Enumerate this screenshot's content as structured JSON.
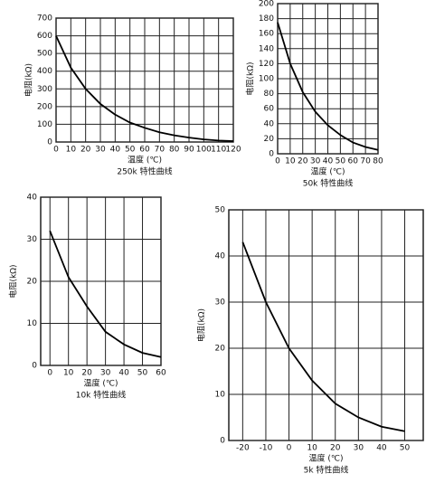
{
  "chart_data": [
    {
      "type": "line",
      "title": "250k 特性曲线",
      "x_label": "温度 (℃)",
      "y_label": "电阻(kΩ)",
      "x": [
        0,
        10,
        20,
        30,
        40,
        50,
        60,
        70,
        80,
        90,
        100,
        110,
        120
      ],
      "values": [
        600,
        420,
        300,
        215,
        155,
        110,
        80,
        55,
        38,
        25,
        15,
        8,
        5
      ],
      "xlim": [
        0,
        120
      ],
      "xticks": [
        0,
        10,
        20,
        30,
        40,
        50,
        60,
        70,
        80,
        90,
        100,
        110,
        120
      ],
      "ylim": [
        0,
        700
      ],
      "yticks": [
        0,
        100,
        200,
        300,
        400,
        500,
        600,
        700
      ],
      "grid": true,
      "color": "#000000"
    },
    {
      "type": "line",
      "title": "50k 特性曲线",
      "x_label": "温度 (℃)",
      "y_label": "电阻(kΩ)",
      "x": [
        0,
        10,
        20,
        30,
        40,
        50,
        60,
        70,
        80
      ],
      "values": [
        175,
        120,
        82,
        56,
        38,
        25,
        15,
        9,
        5
      ],
      "xlim": [
        0,
        80
      ],
      "xticks": [
        0,
        10,
        20,
        30,
        40,
        50,
        60,
        70,
        80
      ],
      "ylim": [
        0,
        200
      ],
      "yticks": [
        0,
        20,
        40,
        60,
        80,
        100,
        120,
        140,
        160,
        180,
        200
      ],
      "grid": true,
      "color": "#000000"
    },
    {
      "type": "line",
      "title": "10k 特性曲线",
      "x_label": "温度 (℃)",
      "y_label": "电阻(kΩ)",
      "x": [
        0,
        10,
        20,
        30,
        40,
        50,
        60
      ],
      "values": [
        32,
        21,
        14,
        8,
        5,
        3,
        2
      ],
      "xlim": [
        -5,
        60
      ],
      "xticks": [
        0,
        10,
        20,
        30,
        40,
        50,
        60
      ],
      "ylim": [
        0,
        40
      ],
      "yticks": [
        0,
        10,
        20,
        30,
        40
      ],
      "grid": true,
      "color": "#000000"
    },
    {
      "type": "line",
      "title": "5k 特性曲线",
      "x_label": "温度 (℃)",
      "y_label": "电阻(kΩ)",
      "x": [
        -20,
        -10,
        0,
        10,
        20,
        30,
        40,
        50
      ],
      "values": [
        43,
        30,
        20,
        13,
        8,
        5,
        3,
        2
      ],
      "xlim": [
        -26,
        58
      ],
      "xticks": [
        -20,
        -10,
        0,
        10,
        20,
        30,
        40,
        50
      ],
      "ylim": [
        0,
        50
      ],
      "yticks": [
        0,
        10,
        20,
        30,
        40,
        50
      ],
      "grid": true,
      "color": "#000000"
    }
  ]
}
